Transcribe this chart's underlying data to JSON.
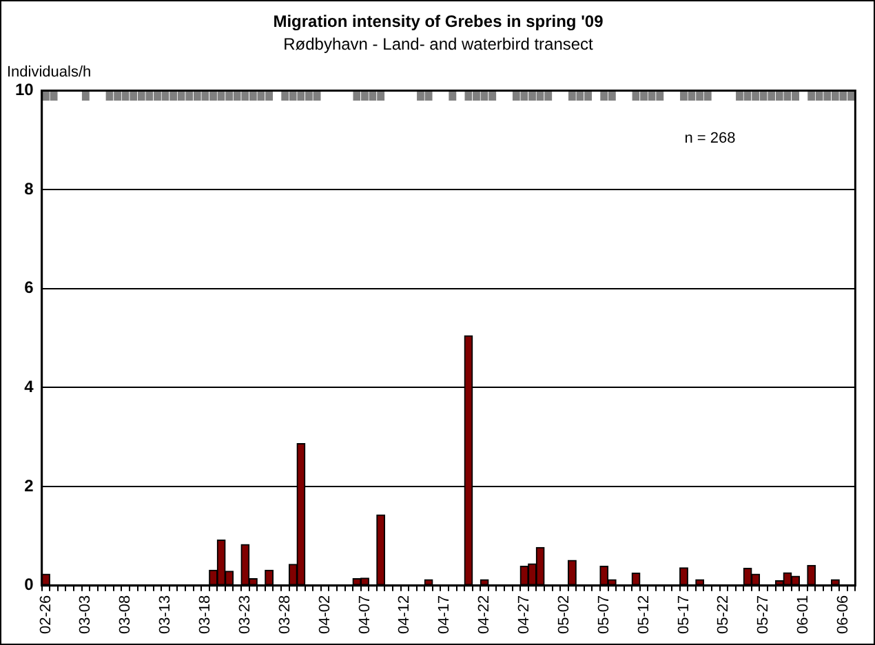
{
  "chart_data": {
    "type": "bar",
    "title": "Migration intensity of Grebes in spring '09",
    "subtitle": "Rødbyhavn - Land- and waterbird transect",
    "ylabel": "Individuals/h",
    "annotations": [
      "n = 268"
    ],
    "categories": [
      "02-26",
      null,
      null,
      null,
      null,
      "03-03",
      null,
      null,
      null,
      null,
      "03-08",
      null,
      null,
      null,
      null,
      "03-13",
      null,
      null,
      null,
      null,
      "03-18",
      null,
      null,
      null,
      null,
      "03-23",
      null,
      null,
      null,
      null,
      "03-28",
      null,
      null,
      null,
      null,
      "04-02",
      null,
      null,
      null,
      null,
      "04-07",
      null,
      null,
      null,
      null,
      "04-12",
      null,
      null,
      null,
      null,
      "04-17",
      null,
      null,
      null,
      null,
      "04-22",
      null,
      null,
      null,
      null,
      "04-27",
      null,
      null,
      null,
      null,
      "05-02",
      null,
      null,
      null,
      null,
      "05-07",
      null,
      null,
      null,
      null,
      "05-12",
      null,
      null,
      null,
      null,
      "05-17",
      null,
      null,
      null,
      null,
      "05-22",
      null,
      null,
      null,
      null,
      "05-27",
      null,
      null,
      null,
      null,
      "06-01",
      null,
      null,
      null,
      null,
      "06-06",
      null
    ],
    "series": [
      {
        "color": "#800000",
        "values": [
          0.23,
          0,
          0,
          0,
          0,
          0,
          0,
          0,
          0,
          0,
          0,
          0,
          0,
          0,
          0,
          0,
          0,
          0,
          0,
          0,
          0,
          0.31,
          0.92,
          0.29,
          0,
          0.83,
          0.14,
          0,
          0.31,
          0,
          0,
          0.43,
          2.87,
          0,
          0,
          0,
          0,
          0,
          0,
          0.14,
          0.15,
          0,
          1.43,
          0,
          0,
          0,
          0,
          0,
          0.12,
          0,
          0,
          0,
          0,
          5.05,
          0,
          0.12,
          0,
          0,
          0,
          0,
          0.39,
          0.44,
          0.77,
          0,
          0,
          0,
          0.51,
          0,
          0,
          0,
          0.39,
          0.12,
          0,
          0,
          0.25,
          0,
          0,
          0,
          0,
          0,
          0.36,
          0,
          0.12,
          0,
          0,
          0,
          0,
          0,
          0.35,
          0.23,
          0,
          0,
          0.1,
          0.26,
          0.19,
          0,
          0.41,
          0,
          0,
          0.12,
          0,
          0
        ]
      },
      {
        "color": "#808080",
        "values": [
          0.2,
          0.2,
          null,
          null,
          null,
          0.2,
          null,
          null,
          0.2,
          0.2,
          0.2,
          0.2,
          0.2,
          0.2,
          0.2,
          0.2,
          0.2,
          0.2,
          0.2,
          0.2,
          0.2,
          0.2,
          0.2,
          0.2,
          0.2,
          0.2,
          0.2,
          0.2,
          0.2,
          null,
          0.2,
          0.2,
          0.2,
          0.2,
          0.2,
          null,
          null,
          null,
          null,
          0.2,
          0.2,
          0.2,
          0.2,
          null,
          null,
          null,
          null,
          0.2,
          0.2,
          null,
          null,
          0.2,
          null,
          0.2,
          0.2,
          0.2,
          0.2,
          null,
          null,
          0.2,
          0.2,
          0.2,
          0.2,
          0.2,
          null,
          null,
          0.2,
          0.2,
          0.2,
          null,
          0.2,
          0.2,
          null,
          null,
          0.2,
          0.2,
          0.2,
          0.2,
          null,
          null,
          0.2,
          0.2,
          0.2,
          0.2,
          null,
          null,
          null,
          0.2,
          0.2,
          0.2,
          0.2,
          0.2,
          0.2,
          0.2,
          0.2,
          null,
          0.2,
          0.2,
          0.2,
          0.2,
          0.2,
          0.2
        ],
        "base": [
          9.8,
          9.8,
          null,
          null,
          null,
          9.8,
          null,
          null,
          9.8,
          9.8,
          9.8,
          9.8,
          9.8,
          9.8,
          9.8,
          9.8,
          9.8,
          9.8,
          9.8,
          9.8,
          9.8,
          9.8,
          9.8,
          9.8,
          9.8,
          9.8,
          9.8,
          9.8,
          9.8,
          null,
          9.8,
          9.8,
          9.8,
          9.8,
          9.8,
          null,
          null,
          null,
          null,
          9.8,
          9.8,
          9.8,
          9.8,
          null,
          null,
          null,
          null,
          9.8,
          9.8,
          null,
          null,
          9.8,
          null,
          9.8,
          9.8,
          9.8,
          9.8,
          null,
          null,
          9.8,
          9.8,
          9.8,
          9.8,
          9.8,
          null,
          null,
          9.8,
          9.8,
          9.8,
          null,
          9.8,
          9.8,
          null,
          null,
          9.8,
          9.8,
          9.8,
          9.8,
          null,
          null,
          9.8,
          9.8,
          9.8,
          9.8,
          null,
          null,
          null,
          9.8,
          9.8,
          9.8,
          9.8,
          9.8,
          9.8,
          9.8,
          9.8,
          null,
          9.8,
          9.8,
          9.8,
          9.8,
          9.8,
          9.8
        ]
      }
    ],
    "ylim": [
      0,
      10
    ],
    "yticks": [
      0,
      2,
      4,
      6,
      8,
      10
    ],
    "grid": "y"
  }
}
